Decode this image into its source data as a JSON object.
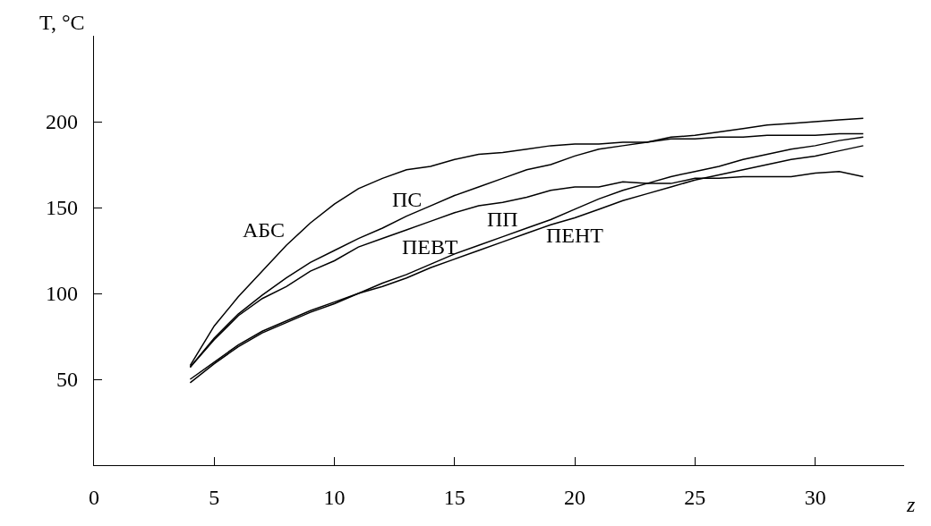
{
  "chart_data": {
    "type": "line",
    "xlabel": "z",
    "ylabel": "T, °C",
    "x": [
      4,
      5,
      6,
      7,
      8,
      9,
      10,
      11,
      12,
      13,
      14,
      15,
      16,
      17,
      18,
      19,
      20,
      21,
      22,
      23,
      24,
      25,
      26,
      27,
      28,
      29,
      30,
      31,
      32
    ],
    "series": [
      {
        "name": "АБС",
        "color": "#000000",
        "values": [
          58,
          81,
          98,
          113,
          128,
          141,
          152,
          161,
          167,
          172,
          174,
          178,
          181,
          182,
          184,
          186,
          187,
          187,
          188,
          188,
          190,
          190,
          191,
          191,
          192,
          192,
          192,
          193,
          193
        ]
      },
      {
        "name": "ПС",
        "color": "#000000",
        "values": [
          57,
          74,
          88,
          99,
          109,
          118,
          125,
          132,
          138,
          145,
          151,
          157,
          162,
          167,
          172,
          175,
          180,
          184,
          186,
          188,
          191,
          192,
          194,
          196,
          198,
          199,
          200,
          201,
          202
        ]
      },
      {
        "name": "ПП",
        "color": "#000000",
        "values": [
          57,
          73,
          87,
          97,
          104,
          113,
          119,
          127,
          132,
          137,
          142,
          147,
          151,
          153,
          156,
          160,
          162,
          162,
          165,
          164,
          164,
          167,
          167,
          168,
          168,
          168,
          170,
          171,
          168
        ]
      },
      {
        "name": "ПЕНТ",
        "color": "#000000",
        "values": [
          48,
          59,
          69,
          77,
          83,
          89,
          94,
          100,
          104,
          109,
          115,
          120,
          125,
          130,
          135,
          140,
          144,
          149,
          154,
          158,
          162,
          166,
          169,
          172,
          175,
          178,
          180,
          183,
          186
        ]
      },
      {
        "name": "ПЕВТ",
        "color": "#000000",
        "values": [
          50,
          60,
          70,
          78,
          84,
          90,
          95,
          100,
          106,
          111,
          117,
          123,
          128,
          133,
          138,
          143,
          149,
          155,
          160,
          164,
          168,
          171,
          174,
          178,
          181,
          184,
          186,
          189,
          191
        ]
      }
    ],
    "xlim": [
      0,
      33.7
    ],
    "ylim": [
      0,
      250
    ],
    "xticks": [
      0,
      5,
      10,
      15,
      20,
      25,
      30
    ],
    "yticks": [
      50,
      100,
      150,
      200
    ],
    "grid": false,
    "legend": false,
    "marker": "none",
    "line_style": "solid"
  }
}
